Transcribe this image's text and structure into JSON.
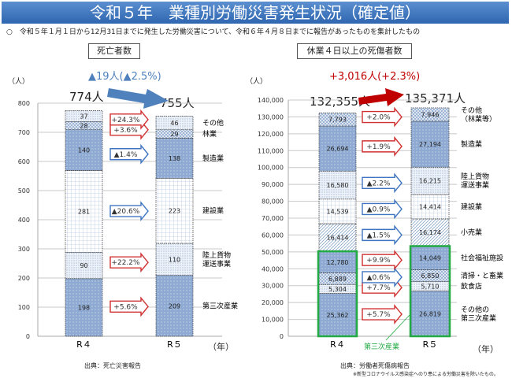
{
  "header": {
    "title": "令和５年　業種別労働災害発生状況（確定値）"
  },
  "note": {
    "bullet": "○",
    "text": "令和５年１月１日から12月31日までに発生した労働災害について、令和６年４月８日までに報告があったものを集計したもの"
  },
  "colors": {
    "header": "#3a72bc",
    "increase": "#d03030",
    "decrease": "#3e74c0",
    "green": "#22aa44",
    "dark_fill": "#8eaad2",
    "summary_blue": "#4f81bd",
    "summary_red": "#c00000"
  },
  "chart_data": [
    {
      "type": "bar",
      "stacked": true,
      "title": "死亡者数",
      "unit": "（人）",
      "xunit": "（年）",
      "summary": "▲19人(▲2.5%)",
      "totals": [
        "774人",
        "755人"
      ],
      "categories": [
        "R４",
        "R５"
      ],
      "ylim": [
        0,
        800
      ],
      "yticks": [
        "0",
        "100",
        "200",
        "300",
        "400",
        "500",
        "600",
        "700",
        "800"
      ],
      "grid": true,
      "source": "出典：死亡災害報告",
      "series": [
        {
          "name": "第三次産業",
          "values": [
            198,
            209
          ],
          "change": "+5.6%",
          "dir": "up",
          "fill": "dark"
        },
        {
          "name": "陸上貨物\n運送事業",
          "values": [
            90,
            110
          ],
          "change": "+22.2%",
          "dir": "up",
          "fill": "light-dots"
        },
        {
          "name": "建設業",
          "values": [
            281,
            223
          ],
          "change": "▲20.6%",
          "dir": "down",
          "fill": "grid"
        },
        {
          "name": "製造業",
          "values": [
            140,
            138
          ],
          "change": "▲1.4%",
          "dir": "down",
          "fill": "dark"
        },
        {
          "name": "林業",
          "values": [
            28,
            29
          ],
          "change": "+3.6%",
          "dir": "up",
          "fill": "check"
        },
        {
          "name": "その他",
          "values": [
            37,
            46
          ],
          "change": "+24.3%",
          "dir": "up",
          "fill": "light-dots"
        }
      ]
    },
    {
      "type": "bar",
      "stacked": true,
      "title": "休業４日以上の死傷者数",
      "unit": "（人）",
      "xunit": "（年）",
      "summary": "+3,016人(+2.3%)",
      "totals": [
        "132,355人",
        "135,371人"
      ],
      "categories": [
        "R４",
        "R５"
      ],
      "ylim": [
        0,
        140000
      ],
      "yticks": [
        "0",
        "10,000",
        "20,000",
        "30,000",
        "40,000",
        "50,000",
        "60,000",
        "70,000",
        "80,000",
        "90,000",
        "100,000",
        "110,000",
        "120,000",
        "130,000",
        "140,000"
      ],
      "grid": true,
      "group_label": "第三次産業",
      "source": "出典：労働者死傷病報告",
      "footnote": "※新型コロナウイルス感染症へのり患による労働災害を除いたもの。",
      "series": [
        {
          "name": "その他の\n第三次産業",
          "values": [
            25362,
            26819
          ],
          "change": "+5.7%",
          "dir": "up",
          "fill": "dark"
        },
        {
          "name": "飲食店",
          "values": [
            5304,
            5710
          ],
          "change": "+7.7%",
          "dir": "up",
          "fill": "light-dots"
        },
        {
          "name": "清掃・と畜業",
          "values": [
            6889,
            6850
          ],
          "change": "▲0.6%",
          "dir": "down",
          "fill": "check"
        },
        {
          "name": "社会福祉施設",
          "values": [
            12780,
            14049
          ],
          "change": "+9.9%",
          "dir": "up",
          "fill": "dark"
        },
        {
          "name": "小売業",
          "values": [
            16414,
            16174
          ],
          "change": "▲1.5%",
          "dir": "down",
          "fill": "diag"
        },
        {
          "name": "建設業",
          "values": [
            14539,
            14414
          ],
          "change": "▲0.9%",
          "dir": "down",
          "fill": "grid"
        },
        {
          "name": "陸上貨物\n運送事業",
          "values": [
            16580,
            16215
          ],
          "change": "▲2.2%",
          "dir": "down",
          "fill": "light-dots"
        },
        {
          "name": "製造業",
          "values": [
            26694,
            27194
          ],
          "change": "+1.9%",
          "dir": "up",
          "fill": "dark"
        },
        {
          "name": "その他\n（林業等）",
          "values": [
            7793,
            7946
          ],
          "change": "+2.0%",
          "dir": "up",
          "fill": "check"
        }
      ]
    }
  ]
}
